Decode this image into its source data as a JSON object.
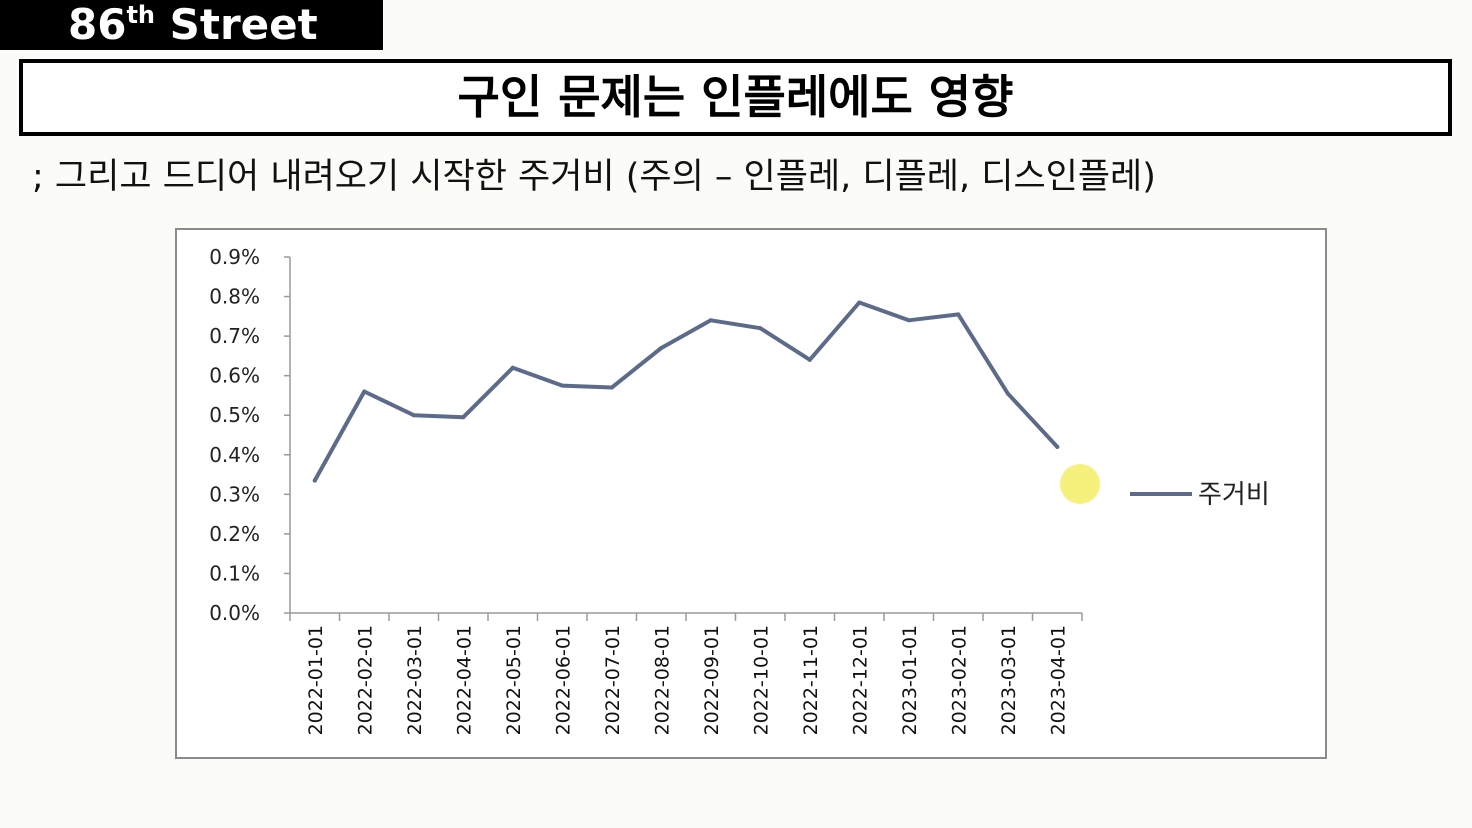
{
  "brand": {
    "number": "86",
    "suffix": "th",
    "name": "Street"
  },
  "title": "구인 문제는 인플레에도 영향",
  "subtitle": "; 그리고 드디어 내려오기 시작한 주거비 (주의 – 인플레, 디플레, 디스인플레)",
  "chart_data": {
    "type": "line",
    "categories": [
      "2022-01-01",
      "2022-02-01",
      "2022-03-01",
      "2022-04-01",
      "2022-05-01",
      "2022-06-01",
      "2022-07-01",
      "2022-08-01",
      "2022-09-01",
      "2022-10-01",
      "2022-11-01",
      "2022-12-01",
      "2023-01-01",
      "2023-02-01",
      "2023-03-01",
      "2023-04-01"
    ],
    "series": [
      {
        "name": "주거비",
        "values": [
          0.335,
          0.56,
          0.5,
          0.495,
          0.62,
          0.575,
          0.57,
          0.67,
          0.74,
          0.72,
          0.64,
          0.785,
          0.74,
          0.755,
          0.555,
          0.42
        ],
        "color": "#5d6b8a"
      }
    ],
    "yticks": [
      "0.0%",
      "0.1%",
      "0.2%",
      "0.3%",
      "0.4%",
      "0.5%",
      "0.6%",
      "0.7%",
      "0.8%",
      "0.9%"
    ],
    "ylim": [
      0,
      0.9
    ],
    "yunit": "%",
    "legend_position": "right",
    "grid": false,
    "annotation": {
      "type": "highlight-dot",
      "color": "#f5ef6e"
    }
  }
}
